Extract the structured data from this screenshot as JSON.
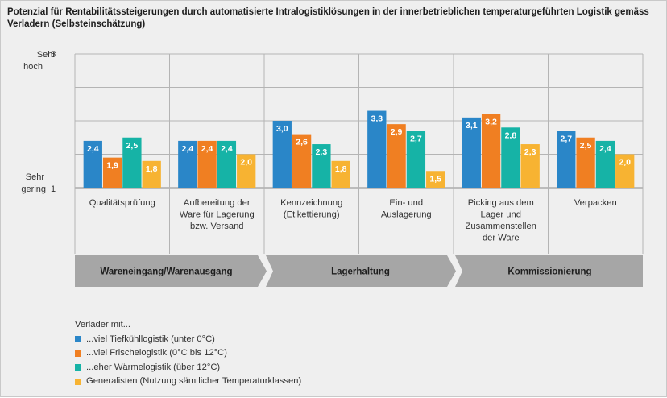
{
  "chart_data": {
    "type": "bar",
    "title": "Potenzial für Rentabilitätssteigerungen durch automatisierte Intralogistiklösungen in der innerbetrieblichen temperaturgeführten Logistik gemäss Verladern (Selbsteinschätzung)",
    "y_axis": {
      "ylim": [
        1,
        5
      ],
      "ticks": [
        1,
        5
      ],
      "top_label": [
        "Sehr",
        "hoch"
      ],
      "bottom_label": [
        "Sehr",
        "gering"
      ]
    },
    "grid": true,
    "categories": [
      [
        "Qualitätsprüfung"
      ],
      [
        "Aufbereitung der",
        "Ware für Lagerung",
        "bzw. Versand"
      ],
      [
        "Kennzeichnung",
        "(Etikettierung)"
      ],
      [
        "Ein- und",
        "Auslagerung"
      ],
      [
        "Picking aus dem",
        "Lager und",
        "Zusammenstellen",
        "der Ware"
      ],
      [
        "Verpacken"
      ]
    ],
    "groups": [
      {
        "label": "Wareneingang/Warenausgang",
        "categories": [
          0,
          1
        ]
      },
      {
        "label": "Lagerhaltung",
        "categories": [
          2,
          3
        ]
      },
      {
        "label": "Kommissionierung",
        "categories": [
          4,
          5
        ]
      }
    ],
    "series": [
      {
        "name": "...viel Tiefkühllogistik (unter 0°C)",
        "color": "#2a86c8",
        "values": [
          2.4,
          2.4,
          3.0,
          3.3,
          3.1,
          2.7
        ]
      },
      {
        "name": "...viel Frischelogistik (0°C bis 12°C)",
        "color": "#f07f22",
        "values": [
          1.9,
          2.4,
          2.6,
          2.9,
          3.2,
          2.5
        ]
      },
      {
        "name": "...eher Wärmelogistik (über 12°C)",
        "color": "#16b3a6",
        "values": [
          2.5,
          2.4,
          2.3,
          2.7,
          2.8,
          2.4
        ]
      },
      {
        "name": "Generalisten (Nutzung sämtlicher Temperaturklassen)",
        "color": "#f7b332",
        "values": [
          1.8,
          2.0,
          1.8,
          1.5,
          2.3,
          2.0
        ]
      }
    ],
    "legend": {
      "title": "Verlader mit...",
      "position": "bottom-left"
    }
  }
}
